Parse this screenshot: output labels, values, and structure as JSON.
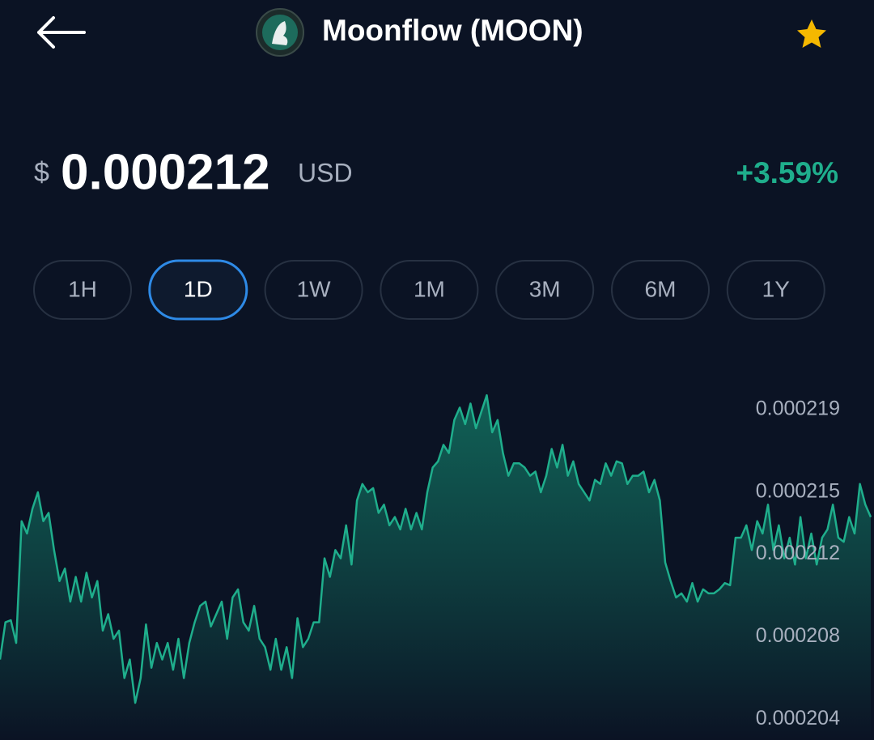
{
  "header": {
    "title": "Moonflow (MOON)"
  },
  "price": {
    "currency_symbol": "$",
    "value": "0.000212",
    "unit": "USD",
    "change": "+3.59%"
  },
  "timeframes": {
    "options": [
      "1H",
      "1D",
      "1W",
      "1M",
      "3M",
      "6M",
      "1Y"
    ],
    "selected": 1
  },
  "chart_data": {
    "type": "line",
    "grid": false,
    "ylim": [
      0.000203,
      0.000222
    ],
    "yticks": [
      0.000204,
      0.000208,
      0.000212,
      0.000215,
      0.000219
    ],
    "series": [
      {
        "name": "MOON",
        "color": "#1fae8c",
        "values": [
          0.0002069,
          0.0002087,
          0.0002088,
          0.0002077,
          0.0002136,
          0.000213,
          0.0002142,
          0.000215,
          0.0002136,
          0.000214,
          0.0002122,
          0.0002107,
          0.0002113,
          0.0002097,
          0.0002109,
          0.0002097,
          0.0002111,
          0.0002099,
          0.0002107,
          0.0002083,
          0.0002091,
          0.0002079,
          0.0002083,
          0.000206,
          0.0002069,
          0.0002048,
          0.000206,
          0.0002086,
          0.0002065,
          0.0002077,
          0.0002069,
          0.0002077,
          0.0002064,
          0.0002079,
          0.000206,
          0.0002077,
          0.0002087,
          0.0002095,
          0.0002097,
          0.0002085,
          0.0002091,
          0.0002097,
          0.0002079,
          0.0002099,
          0.0002103,
          0.0002087,
          0.0002083,
          0.0002095,
          0.0002079,
          0.0002075,
          0.0002064,
          0.0002079,
          0.0002064,
          0.0002075,
          0.000206,
          0.0002089,
          0.0002075,
          0.0002079,
          0.0002087,
          0.0002087,
          0.0002118,
          0.0002109,
          0.0002122,
          0.0002118,
          0.0002134,
          0.0002115,
          0.0002146,
          0.0002154,
          0.000215,
          0.0002152,
          0.000214,
          0.0002144,
          0.0002134,
          0.0002138,
          0.0002132,
          0.0002142,
          0.0002132,
          0.000214,
          0.0002132,
          0.000215,
          0.0002162,
          0.0002165,
          0.0002173,
          0.0002169,
          0.0002185,
          0.0002191,
          0.0002183,
          0.0002193,
          0.0002181,
          0.0002189,
          0.0002197,
          0.0002179,
          0.0002185,
          0.0002169,
          0.0002158,
          0.0002164,
          0.0002164,
          0.0002162,
          0.0002158,
          0.000216,
          0.000215,
          0.0002158,
          0.0002171,
          0.0002162,
          0.0002173,
          0.0002158,
          0.0002165,
          0.0002154,
          0.000215,
          0.0002146,
          0.0002156,
          0.0002154,
          0.0002164,
          0.0002158,
          0.0002165,
          0.0002164,
          0.0002154,
          0.0002158,
          0.0002158,
          0.000216,
          0.000215,
          0.0002156,
          0.0002146,
          0.0002116,
          0.0002107,
          0.0002099,
          0.0002101,
          0.0002097,
          0.0002106,
          0.0002097,
          0.0002103,
          0.0002101,
          0.0002101,
          0.0002103,
          0.0002106,
          0.0002105,
          0.0002128,
          0.0002128,
          0.0002134,
          0.0002122,
          0.0002136,
          0.000213,
          0.0002144,
          0.0002122,
          0.0002134,
          0.0002118,
          0.0002128,
          0.0002115,
          0.0002138,
          0.0002118,
          0.000213,
          0.0002115,
          0.0002128,
          0.0002132,
          0.0002144,
          0.0002128,
          0.0002126,
          0.0002138,
          0.000213,
          0.0002154,
          0.0002144,
          0.0002138
        ]
      }
    ]
  }
}
